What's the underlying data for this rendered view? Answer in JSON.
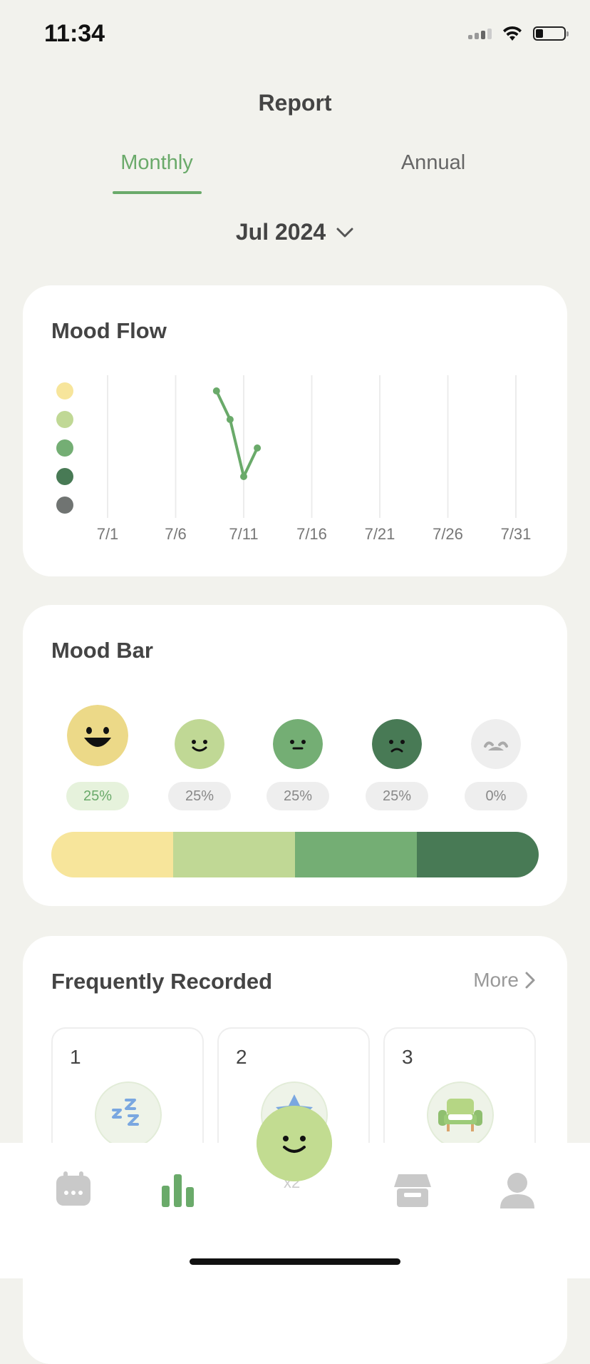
{
  "status": {
    "time": "11:34"
  },
  "header": {
    "title": "Report"
  },
  "tabs": [
    {
      "label": "Monthly",
      "active": true
    },
    {
      "label": "Annual",
      "active": false
    }
  ],
  "period": {
    "label": "Jul 2024"
  },
  "mood_flow": {
    "title": "Mood Flow",
    "level_colors": [
      "#f7e59b",
      "#c0d895",
      "#74ae74",
      "#487a55",
      "#707472"
    ],
    "x_ticks": [
      "7/1",
      "7/6",
      "7/11",
      "7/16",
      "7/21",
      "7/26",
      "7/31"
    ]
  },
  "chart_data": {
    "type": "line",
    "title": "Mood Flow",
    "x": [
      9,
      10,
      11,
      12
    ],
    "y": [
      1,
      2,
      4,
      3
    ],
    "x_tick_labels": [
      "7/1",
      "7/6",
      "7/11",
      "7/16",
      "7/21",
      "7/26",
      "7/31"
    ],
    "xlim": [
      1,
      31
    ],
    "ylim": [
      1,
      5
    ],
    "y_levels": [
      "#f7e59b",
      "#c0d895",
      "#74ae74",
      "#487a55",
      "#707472"
    ],
    "series_color": "#6aaa6a",
    "grid": true
  },
  "mood_bar": {
    "title": "Mood Bar",
    "moods": [
      {
        "icon": "laughing-face-icon",
        "color": "#ecd988",
        "percent": "25%",
        "highlighted": true
      },
      {
        "icon": "smiling-face-icon",
        "color": "#c0d895",
        "percent": "25%",
        "highlighted": false
      },
      {
        "icon": "neutral-face-icon",
        "color": "#74ae74",
        "percent": "25%",
        "highlighted": false
      },
      {
        "icon": "frowning-face-icon",
        "color": "#487a55",
        "percent": "25%",
        "highlighted": false
      },
      {
        "icon": "crying-face-icon",
        "color": "#eeeeee",
        "percent": "0%",
        "highlighted": false
      }
    ],
    "distribution": [
      {
        "color": "#f7e59b",
        "fraction": 0.25
      },
      {
        "color": "#c0d895",
        "fraction": 0.25
      },
      {
        "color": "#74ae74",
        "fraction": 0.25
      },
      {
        "color": "#487a55",
        "fraction": 0.25
      }
    ]
  },
  "frequently_recorded": {
    "title": "Frequently Recorded",
    "more_label": "More",
    "items": [
      {
        "rank": "1",
        "icon": "sleep-zzz-icon"
      },
      {
        "rank": "2",
        "icon": "star-icon"
      },
      {
        "rank": "3",
        "icon": "armchair-icon"
      }
    ]
  },
  "bottom_nav": {
    "items": [
      {
        "icon": "calendar-icon",
        "active": false
      },
      {
        "icon": "bar-chart-icon",
        "active": true
      },
      {
        "icon": "store-icon",
        "active": false
      },
      {
        "icon": "profile-icon",
        "active": false
      }
    ],
    "fab": {
      "icon": "add-mood-face-icon",
      "label": "x2"
    }
  }
}
